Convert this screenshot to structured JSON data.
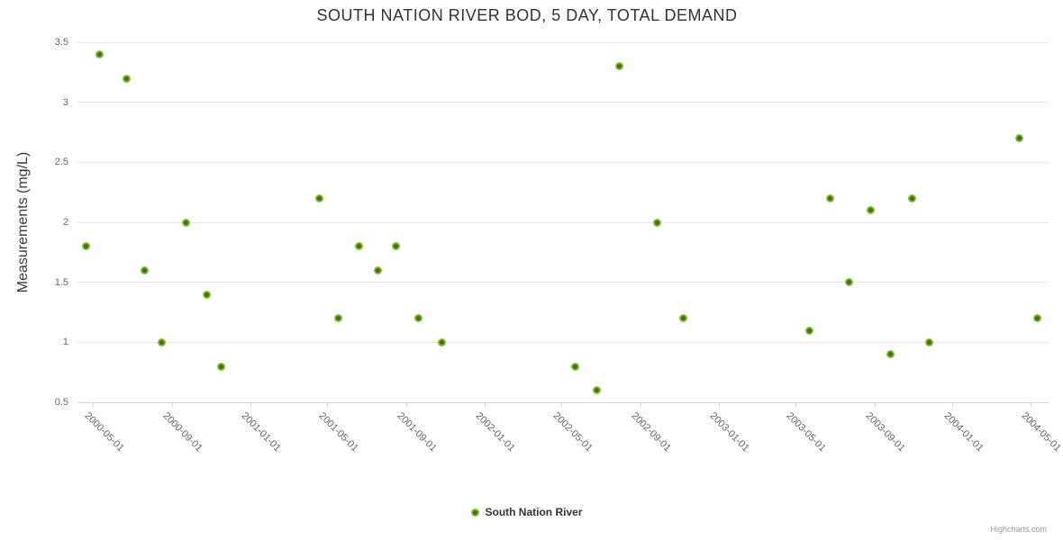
{
  "credits": "Highcharts.com",
  "colors": {
    "marker_outer": "#8AC43C",
    "marker_inner": "#456F00",
    "grid_line": "#e6e6e6",
    "axis_line": "#ccd6eb",
    "title_text": "#333333",
    "axis_label_text": "#666666",
    "legend_text": "#333333",
    "credits_text": "#999999",
    "background": "#ffffff"
  },
  "chart_data": {
    "type": "scatter",
    "title": "SOUTH NATION RIVER BOD, 5 DAY, TOTAL DEMAND",
    "xlabel": "",
    "ylabel": "Measurements (mg/L)",
    "grid": "horizontal",
    "legend_position": "bottom-center",
    "x_axis": {
      "type": "datetime",
      "min": "2000-04-06",
      "max": "2004-05-29",
      "tick_labels": [
        "2000-05-01",
        "2000-09-01",
        "2001-01-01",
        "2001-05-01",
        "2001-09-01",
        "2002-01-01",
        "2002-05-01",
        "2002-09-01",
        "2003-01-01",
        "2003-05-01",
        "2003-09-01",
        "2004-01-01",
        "2004-05-01"
      ]
    },
    "y_axis": {
      "min": 0.5,
      "max": 3.5,
      "ticks": [
        0.5,
        1,
        1.5,
        2,
        2.5,
        3,
        3.5
      ]
    },
    "series": [
      {
        "name": "South Nation River",
        "points": [
          {
            "date": "2000-04-19",
            "value": 1.8
          },
          {
            "date": "2000-05-11",
            "value": 3.4
          },
          {
            "date": "2000-06-22",
            "value": 3.2
          },
          {
            "date": "2000-07-20",
            "value": 1.6
          },
          {
            "date": "2000-08-15",
            "value": 1.0
          },
          {
            "date": "2000-09-22",
            "value": 2.0
          },
          {
            "date": "2000-10-25",
            "value": 1.4
          },
          {
            "date": "2000-11-16",
            "value": 0.8
          },
          {
            "date": "2001-04-18",
            "value": 2.2
          },
          {
            "date": "2001-05-17",
            "value": 1.2
          },
          {
            "date": "2001-06-19",
            "value": 1.8
          },
          {
            "date": "2001-07-18",
            "value": 1.6
          },
          {
            "date": "2001-08-16",
            "value": 1.8
          },
          {
            "date": "2001-09-20",
            "value": 1.2
          },
          {
            "date": "2001-10-26",
            "value": 1.0
          },
          {
            "date": "2002-05-22",
            "value": 0.8
          },
          {
            "date": "2002-06-25",
            "value": 0.6
          },
          {
            "date": "2002-07-30",
            "value": 3.3
          },
          {
            "date": "2002-09-27",
            "value": 2.0
          },
          {
            "date": "2002-11-06",
            "value": 1.2
          },
          {
            "date": "2003-05-22",
            "value": 1.1
          },
          {
            "date": "2003-06-24",
            "value": 2.2
          },
          {
            "date": "2003-07-23",
            "value": 1.5
          },
          {
            "date": "2003-08-26",
            "value": 2.1
          },
          {
            "date": "2003-09-25",
            "value": 0.9
          },
          {
            "date": "2003-10-29",
            "value": 2.2
          },
          {
            "date": "2003-11-25",
            "value": 1.0
          },
          {
            "date": "2004-04-14",
            "value": 2.7
          },
          {
            "date": "2004-05-12",
            "value": 1.2
          }
        ]
      }
    ]
  }
}
